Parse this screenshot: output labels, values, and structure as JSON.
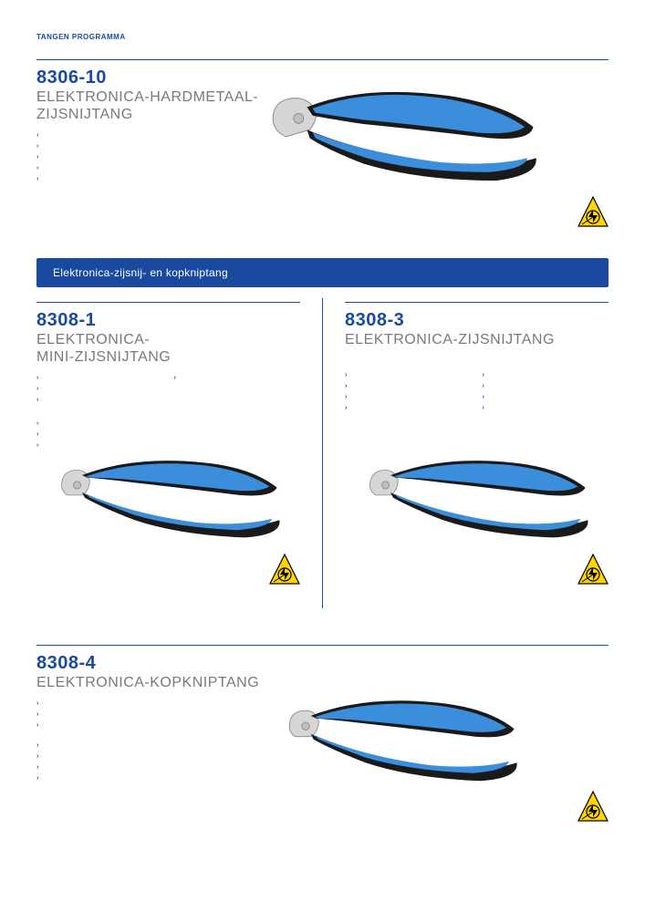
{
  "breadcrumb": "TANGEN PROGRAMMA",
  "colors": {
    "brand": "#1a4aa0",
    "grey": "#7a7a7a",
    "esd_yellow": "#ffd500",
    "handle_blue": "#3a8edb",
    "handle_dark": "#1a1a1a",
    "steel": "#cfcfcf"
  },
  "sections": {
    "s1": {
      "code": "8306-10",
      "title": "ELEKTRONICA-HARDMETAAL-\nZIJSNIJTANG",
      "bullets": [
        "",
        "",
        "",
        "",
        ""
      ]
    },
    "bar": "Elektronica-zijsnij- en kopkniptang",
    "s2": {
      "code": "8308-1",
      "title": "ELEKTRONICA-\nMINI-ZIJSNIJTANG",
      "bullets_left": [
        "",
        "",
        ""
      ],
      "bullets_right": [
        ""
      ],
      "bullets_below": [
        "",
        "",
        ""
      ]
    },
    "s3": {
      "code": "8308-3",
      "title": "ELEKTRONICA-ZIJSNIJTANG",
      "bullets_left": [
        "",
        "",
        "",
        ""
      ],
      "bullets_right": [
        "",
        "",
        "",
        ""
      ]
    },
    "s4": {
      "code": "8308-4",
      "title": "ELEKTRONICA-KOPKNIPTANG",
      "bullets_a": [
        "",
        "",
        ""
      ],
      "bullets_b": [
        "",
        "",
        "",
        ""
      ]
    }
  }
}
